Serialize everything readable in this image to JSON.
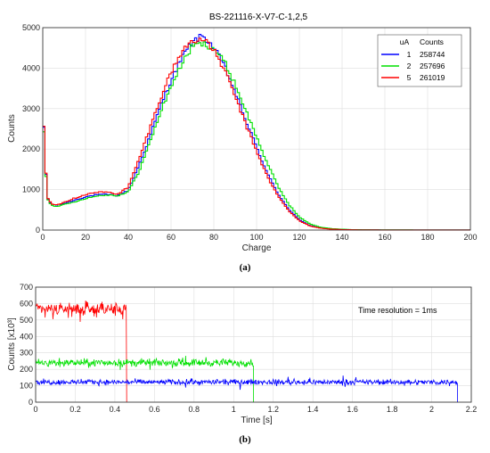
{
  "panel_a": {
    "caption": "(a)",
    "legend": {
      "header_ua": "uA",
      "header_counts": "Counts",
      "rows": [
        {
          "ua": "1",
          "counts": "258744",
          "color": "#0000ff"
        },
        {
          "ua": "2",
          "counts": "257696",
          "color": "#00e000"
        },
        {
          "ua": "5",
          "counts": "261019",
          "color": "#ff0000"
        }
      ]
    }
  },
  "panel_b": {
    "caption": "(b)",
    "annotation": "Time resolution = 1ms"
  },
  "chart_data": [
    {
      "type": "line",
      "title": "BS-221116-X-V7-C-1,2,5",
      "xlabel": "Charge",
      "ylabel": "Counts",
      "xlim": [
        0,
        200
      ],
      "ylim": [
        0,
        5000
      ],
      "xticks": [
        0,
        20,
        40,
        60,
        80,
        100,
        120,
        140,
        160,
        180,
        200
      ],
      "yticks": [
        0,
        1000,
        2000,
        3000,
        4000,
        5000
      ],
      "grid": true,
      "legend_position": "top-right",
      "x": [
        0,
        1,
        2,
        4,
        6,
        8,
        10,
        15,
        20,
        25,
        30,
        35,
        40,
        45,
        50,
        55,
        60,
        65,
        70,
        75,
        80,
        85,
        90,
        95,
        100,
        105,
        110,
        115,
        120,
        125,
        130,
        135,
        140,
        145,
        150,
        160,
        180,
        200
      ],
      "series": [
        {
          "name": "1",
          "color": "#0000ff",
          "values": [
            3050,
            1950,
            800,
            640,
            620,
            630,
            660,
            740,
            820,
            870,
            880,
            850,
            980,
            1600,
            2300,
            3050,
            3700,
            4250,
            4650,
            4800,
            4500,
            4050,
            3400,
            2700,
            2050,
            1400,
            900,
            520,
            250,
            110,
            50,
            25,
            15,
            8,
            5,
            3,
            2,
            2
          ]
        },
        {
          "name": "2",
          "color": "#00e000",
          "values": [
            3000,
            1900,
            780,
            620,
            590,
            600,
            630,
            700,
            780,
            840,
            870,
            850,
            940,
            1450,
            2150,
            2900,
            3550,
            4100,
            4550,
            4600,
            4500,
            4150,
            3600,
            2950,
            2300,
            1650,
            1080,
            640,
            320,
            150,
            70,
            35,
            20,
            10,
            6,
            4,
            3,
            3
          ]
        },
        {
          "name": "5",
          "color": "#ff0000",
          "values": [
            3100,
            2000,
            820,
            660,
            630,
            650,
            690,
            790,
            880,
            930,
            940,
            890,
            1060,
            1750,
            2500,
            3250,
            3900,
            4400,
            4700,
            4700,
            4450,
            3950,
            3300,
            2600,
            1950,
            1320,
            840,
            480,
            230,
            100,
            45,
            22,
            12,
            7,
            4,
            3,
            2,
            2
          ]
        }
      ]
    },
    {
      "type": "line",
      "title": "",
      "xlabel": "Time [s]",
      "ylabel": "Counts [x10³]",
      "xlim": [
        0,
        2.2
      ],
      "ylim": [
        0,
        700
      ],
      "xticks": [
        0,
        0.2,
        0.4,
        0.6,
        0.8,
        1,
        1.2,
        1.4,
        1.6,
        1.8,
        2,
        2.2
      ],
      "yticks": [
        0,
        100,
        200,
        300,
        400,
        500,
        600,
        700
      ],
      "grid": true,
      "series": [
        {
          "name": "",
          "color": "#ff0000",
          "mean": 565,
          "noise": 25,
          "x_end": 0.46
        },
        {
          "name": "",
          "color": "#00e000",
          "mean": 240,
          "noise": 14,
          "x_end": 1.1
        },
        {
          "name": "",
          "color": "#0000ff",
          "mean": 122,
          "noise": 10,
          "x_end": 2.13
        }
      ]
    }
  ]
}
